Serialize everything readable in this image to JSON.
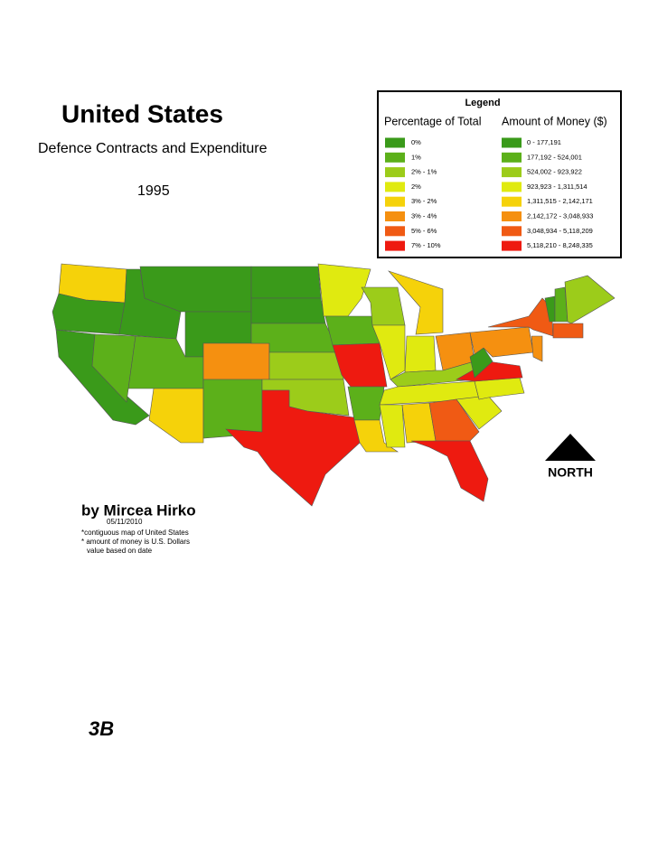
{
  "header": {
    "title": "United States",
    "subtitle": "Defence Contracts and Expenditure",
    "year": "1995"
  },
  "legend": {
    "title": "Legend",
    "percent_header": "Percentage of Total",
    "money_header": "Amount of Money  ($)",
    "items": [
      {
        "color": "#3a9a1a",
        "percent": "0%",
        "money": "0 - 177,191"
      },
      {
        "color": "#5cb01a",
        "percent": "1%",
        "money": "177,192 - 524,001"
      },
      {
        "color": "#9ccc1a",
        "percent": "2% - 1%",
        "money": "524,002 - 923,922"
      },
      {
        "color": "#e0ea10",
        "percent": "2%",
        "money": "923,923 - 1,311,514"
      },
      {
        "color": "#f5d20a",
        "percent": "3% - 2%",
        "money": "1,311,515 - 2,142,171"
      },
      {
        "color": "#f59010",
        "percent": "3% - 4%",
        "money": "2,142,172 - 3,048,933"
      },
      {
        "color": "#f05a14",
        "percent": "5% - 6%",
        "money": "3,048,934 - 5,118,209"
      },
      {
        "color": "#ee1a10",
        "percent": "7% - 10%",
        "money": "5,118,210 - 8,248,335"
      }
    ]
  },
  "compass": "NORTH",
  "footer": {
    "author": "by Mircea Hirko",
    "date": "05/11/2010",
    "notes": [
      "*contiguous map of United States",
      "* amount of money is U.S. Dollars",
      "value based on date"
    ]
  },
  "page_label": "3B"
}
